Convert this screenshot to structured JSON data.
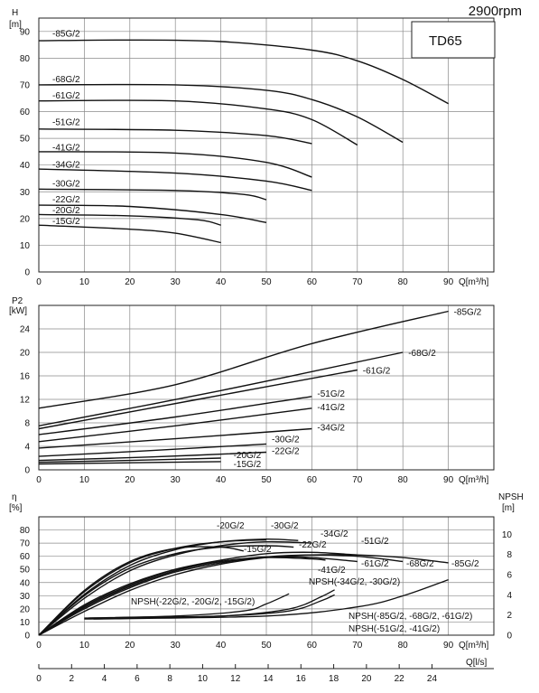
{
  "speed": "2900rpm",
  "model": "TD65",
  "chart_data": [
    {
      "type": "line",
      "name": "head",
      "ylabel": "H",
      "yunit": "[m]",
      "xlabel": "Q[m³/h]",
      "xlim": [
        0,
        100
      ],
      "ylim": [
        0,
        95
      ],
      "xticks": [
        0,
        10,
        20,
        30,
        40,
        50,
        60,
        70,
        80,
        90
      ],
      "yticks": [
        0,
        10,
        20,
        30,
        40,
        50,
        60,
        70,
        80,
        90
      ],
      "series": [
        {
          "name": "-85G/2",
          "label_at": [
            1,
            89
          ],
          "points": [
            [
              0,
              86.5
            ],
            [
              20,
              86.8
            ],
            [
              40,
              86.2
            ],
            [
              60,
              83
            ],
            [
              70,
              79
            ],
            [
              80,
              72
            ],
            [
              90,
              63
            ]
          ]
        },
        {
          "name": "-68G/2",
          "label_at": [
            1,
            72
          ],
          "points": [
            [
              0,
              70
            ],
            [
              30,
              70
            ],
            [
              50,
              68
            ],
            [
              60,
              64.5
            ],
            [
              70,
              58
            ],
            [
              80,
              48.5
            ]
          ]
        },
        {
          "name": "-61G/2",
          "label_at": [
            1,
            66
          ],
          "points": [
            [
              0,
              64
            ],
            [
              30,
              64
            ],
            [
              50,
              61
            ],
            [
              60,
              57
            ],
            [
              70,
              47.5
            ]
          ]
        },
        {
          "name": "-51G/2",
          "label_at": [
            1,
            56
          ],
          "points": [
            [
              0,
              53.5
            ],
            [
              30,
              53
            ],
            [
              50,
              51
            ],
            [
              60,
              48
            ]
          ]
        },
        {
          "name": "-41G/2",
          "label_at": [
            1,
            46.5
          ],
          "points": [
            [
              0,
              45
            ],
            [
              30,
              44.5
            ],
            [
              50,
              41
            ],
            [
              60,
              35.5
            ]
          ]
        },
        {
          "name": "-34G/2",
          "label_at": [
            1,
            40
          ],
          "points": [
            [
              0,
              38.5
            ],
            [
              30,
              37
            ],
            [
              50,
              34
            ],
            [
              60,
              30.5
            ]
          ]
        },
        {
          "name": "-30G/2",
          "label_at": [
            1,
            33
          ],
          "points": [
            [
              0,
              31
            ],
            [
              30,
              30.5
            ],
            [
              45,
              29
            ],
            [
              50,
              27
            ]
          ]
        },
        {
          "name": "-22G/2",
          "label_at": [
            1,
            27
          ],
          "points": [
            [
              0,
              25
            ],
            [
              20,
              24.5
            ],
            [
              40,
              21.5
            ],
            [
              50,
              18.5
            ]
          ]
        },
        {
          "name": "-20G/2",
          "label_at": [
            1,
            23
          ],
          "points": [
            [
              0,
              21.5
            ],
            [
              20,
              21
            ],
            [
              35,
              19.5
            ],
            [
              40,
              17.5
            ]
          ]
        },
        {
          "name": "-15G/2",
          "label_at": [
            1,
            19
          ],
          "points": [
            [
              0,
              17.5
            ],
            [
              20,
              16
            ],
            [
              30,
              14.5
            ],
            [
              40,
              11
            ]
          ]
        }
      ]
    },
    {
      "type": "line",
      "name": "power",
      "ylabel": "P2",
      "yunit": "[kW]",
      "xlabel": "Q[m³/h]",
      "xlim": [
        0,
        100
      ],
      "ylim": [
        0,
        28
      ],
      "xticks": [
        0,
        10,
        20,
        30,
        40,
        50,
        60,
        70,
        80,
        90
      ],
      "yticks": [
        0,
        4,
        8,
        12,
        16,
        20,
        24
      ],
      "series": [
        {
          "name": "-85G/2",
          "points": [
            [
              0,
              10.5
            ],
            [
              30,
              14.5
            ],
            [
              60,
              21.5
            ],
            [
              90,
              27
            ]
          ]
        },
        {
          "name": "-68G/2",
          "points": [
            [
              0,
              7.5
            ],
            [
              40,
              13.5
            ],
            [
              80,
              20
            ]
          ]
        },
        {
          "name": "-61G/2",
          "points": [
            [
              0,
              7
            ],
            [
              35,
              12
            ],
            [
              70,
              17
            ]
          ]
        },
        {
          "name": "-51G/2",
          "points": [
            [
              0,
              6
            ],
            [
              30,
              9
            ],
            [
              60,
              12.5
            ]
          ]
        },
        {
          "name": "-41G/2",
          "points": [
            [
              0,
              4.8
            ],
            [
              30,
              7.5
            ],
            [
              60,
              10.5
            ]
          ]
        },
        {
          "name": "-34G/2",
          "points": [
            [
              0,
              3.7
            ],
            [
              30,
              5.3
            ],
            [
              60,
              7
            ]
          ]
        },
        {
          "name": "-30G/2",
          "points": [
            [
              0,
              2.3
            ],
            [
              25,
              3.3
            ],
            [
              50,
              4.4
            ]
          ]
        },
        {
          "name": "-22G/2",
          "points": [
            [
              0,
              1.6
            ],
            [
              25,
              2.2
            ],
            [
              50,
              3
            ]
          ]
        },
        {
          "name": "-20G/2",
          "points": [
            [
              0,
              1.3
            ],
            [
              20,
              1.6
            ],
            [
              40,
              2
            ]
          ]
        },
        {
          "name": "-15G/2",
          "points": [
            [
              0,
              1
            ],
            [
              20,
              1.2
            ],
            [
              40,
              1.4
            ]
          ]
        }
      ]
    },
    {
      "type": "line",
      "name": "efficiency_npsh",
      "ylabel": "η",
      "yunit": "[%]",
      "y2label": "NPSH",
      "y2unit": "[m]",
      "xlabel": "Q[m³/h]",
      "x2label": "Q[l/s]",
      "xlim": [
        0,
        100
      ],
      "ylim": [
        0,
        90
      ],
      "y2lim": [
        0,
        12
      ],
      "xticks": [
        0,
        10,
        20,
        30,
        40,
        50,
        60,
        70,
        80,
        90
      ],
      "yticks": [
        0,
        10,
        20,
        30,
        40,
        50,
        60,
        70,
        80
      ],
      "y2ticks": [
        0,
        2,
        4,
        6,
        8,
        10
      ],
      "x2ticks": [
        0,
        2,
        4,
        6,
        8,
        10,
        12,
        14,
        16,
        18,
        20,
        22,
        24
      ],
      "efficiency_series": [
        {
          "name": "-20G/2",
          "points": [
            [
              0,
              0
            ],
            [
              10,
              33
            ],
            [
              20,
              55
            ],
            [
              30,
              66
            ],
            [
              40,
              71
            ],
            [
              50,
              72.5
            ]
          ]
        },
        {
          "name": "-30G/2",
          "points": [
            [
              0,
              0
            ],
            [
              10,
              31
            ],
            [
              20,
              53
            ],
            [
              30,
              65
            ],
            [
              40,
              71
            ],
            [
              50,
              73
            ],
            [
              57,
              72
            ]
          ]
        },
        {
          "name": "-15G/2",
          "points": [
            [
              0,
              0
            ],
            [
              10,
              34
            ],
            [
              20,
              56
            ],
            [
              30,
              66
            ],
            [
              40,
              67
            ],
            [
              45,
              64
            ]
          ]
        },
        {
          "name": "-22G/2",
          "points": [
            [
              0,
              0
            ],
            [
              10,
              30
            ],
            [
              20,
              51
            ],
            [
              30,
              62
            ],
            [
              40,
              67
            ],
            [
              50,
              68
            ],
            [
              56,
              67
            ]
          ]
        },
        {
          "name": "-34G/2",
          "points": [
            [
              0,
              0
            ],
            [
              10,
              28
            ],
            [
              20,
              49
            ],
            [
              30,
              61
            ],
            [
              40,
              68
            ],
            [
              50,
              71
            ],
            [
              60,
              70
            ]
          ]
        },
        {
          "name": "-51G/2",
          "points": [
            [
              0,
              0
            ],
            [
              10,
              22
            ],
            [
              20,
              38
            ],
            [
              30,
              50
            ],
            [
              40,
              57
            ],
            [
              50,
              62
            ],
            [
              60,
              63
            ],
            [
              70,
              61
            ]
          ]
        },
        {
          "name": "-41G/2",
          "points": [
            [
              0,
              0
            ],
            [
              10,
              23
            ],
            [
              20,
              39
            ],
            [
              30,
              50
            ],
            [
              40,
              56
            ],
            [
              50,
              59
            ],
            [
              60,
              58
            ],
            [
              63,
              57
            ]
          ]
        },
        {
          "name": "-61G/2",
          "points": [
            [
              0,
              0
            ],
            [
              10,
              21
            ],
            [
              20,
              37
            ],
            [
              30,
              49
            ],
            [
              40,
              56
            ],
            [
              50,
              59.5
            ],
            [
              60,
              59
            ],
            [
              70,
              56
            ]
          ]
        },
        {
          "name": "-68G/2",
          "points": [
            [
              0,
              0
            ],
            [
              10,
              20
            ],
            [
              20,
              36
            ],
            [
              30,
              48
            ],
            [
              40,
              55
            ],
            [
              50,
              59.5
            ],
            [
              60,
              61
            ],
            [
              70,
              60
            ],
            [
              80,
              56
            ]
          ]
        },
        {
          "name": "-85G/2",
          "points": [
            [
              0,
              0
            ],
            [
              10,
              18
            ],
            [
              20,
              34
            ],
            [
              30,
              46
            ],
            [
              40,
              54
            ],
            [
              50,
              59
            ],
            [
              60,
              61
            ],
            [
              70,
              61
            ],
            [
              80,
              59
            ],
            [
              90,
              55
            ]
          ]
        }
      ],
      "npsh_series": [
        {
          "name": "NPSH(-22G/2, -20G/2, -15G/2)",
          "points": [
            [
              10,
              1.7
            ],
            [
              30,
              1.9
            ],
            [
              45,
              2.4
            ],
            [
              50,
              3.1
            ],
            [
              55,
              4.1
            ]
          ]
        },
        {
          "name": "NPSH(-34G/2, -30G/2)",
          "points": [
            [
              10,
              1.6
            ],
            [
              40,
              1.9
            ],
            [
              55,
              2.6
            ],
            [
              62,
              3.8
            ],
            [
              65,
              4.5
            ]
          ]
        },
        {
          "name": "NPSH(-85G/2, -68G/2, -61G/2)",
          "points": [
            [
              12,
              1.6
            ],
            [
              50,
              1.9
            ],
            [
              70,
              2.8
            ],
            [
              80,
              3.9
            ],
            [
              90,
              5.5
            ]
          ]
        },
        {
          "name": "NPSH(-51G/2, -41G/2)",
          "points": [
            [
              11,
              1.7
            ],
            [
              40,
              1.9
            ],
            [
              55,
              2.4
            ],
            [
              62,
              3.4
            ],
            [
              65,
              4
            ]
          ]
        }
      ]
    }
  ]
}
